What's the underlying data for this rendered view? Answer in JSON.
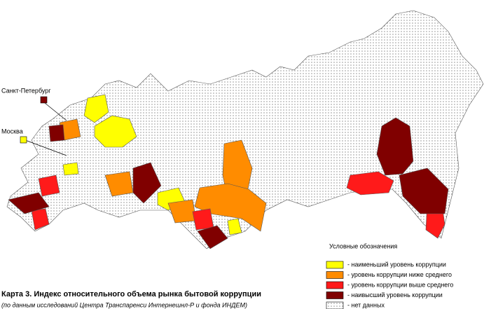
{
  "map": {
    "title": "Карта 3. Индекс относительного объема рынка бытовой коррупции",
    "subtitle": "(по данным исследований Центра Транспаренси Интернешнл-Р и фонда ИНДЕМ)",
    "city_labels": [
      {
        "label": "Санкт-Петербург",
        "legend_item": 3
      },
      {
        "label": "Москва",
        "legend_item": 0
      }
    ]
  },
  "legend": {
    "title": "Условные обозначения",
    "items": [
      {
        "label": "-  наименьший уровень коррупции",
        "color": "#ffff00"
      },
      {
        "label": "-  уровень коррупции ниже среднего",
        "color": "#ff8c00"
      },
      {
        "label": "-  уровень коррупции выше среднего",
        "color": "#ff1a1a"
      },
      {
        "label": "-  наивысший уровень коррупции",
        "color": "#800000"
      },
      {
        "label": "-  нет данных",
        "color": "#ffffff",
        "pattern": "dots"
      }
    ]
  }
}
